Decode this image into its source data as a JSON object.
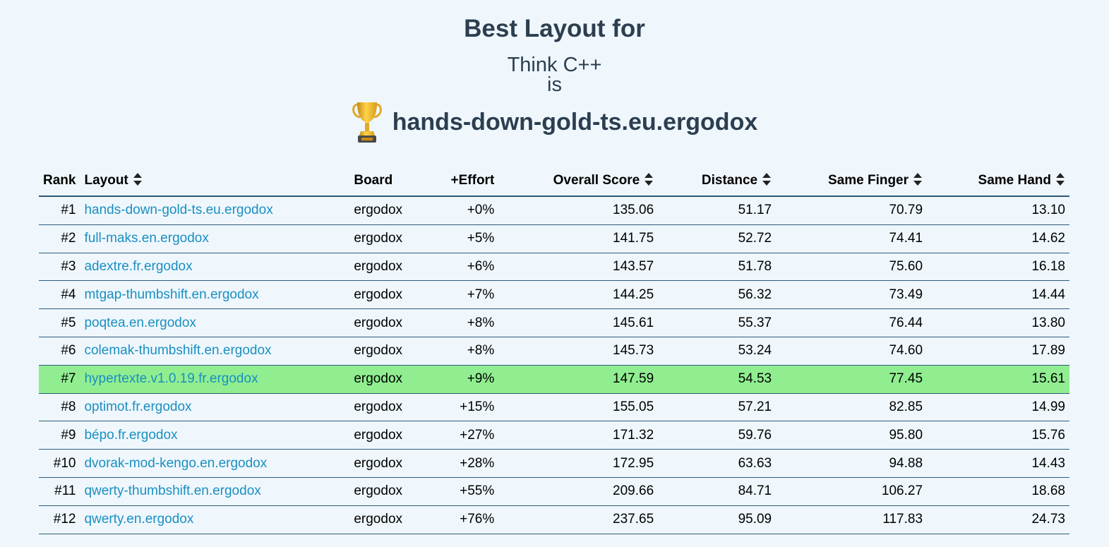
{
  "header": {
    "title": "Best Layout for",
    "subject": "Think C++",
    "is_word": "is",
    "trophy_icon": "trophy-icon",
    "winner": "hands-down-gold-ts.eu.ergodox"
  },
  "table": {
    "columns": {
      "rank": "Rank",
      "layout": "Layout",
      "board": "Board",
      "effort": "+Effort",
      "overall": "Overall Score",
      "distance": "Distance",
      "same_finger": "Same Finger",
      "same_hand": "Same Hand"
    },
    "sortable_icon": "sort-updown-icon",
    "highlight_color": "#90ee90",
    "link_color": "#1a8fc0",
    "rows": [
      {
        "rank": "#1",
        "layout": "hands-down-gold-ts.eu.ergodox",
        "board": "ergodox",
        "effort": "+0%",
        "overall": "135.06",
        "distance": "51.17",
        "same_finger": "70.79",
        "same_hand": "13.10"
      },
      {
        "rank": "#2",
        "layout": "full-maks.en.ergodox",
        "board": "ergodox",
        "effort": "+5%",
        "overall": "141.75",
        "distance": "52.72",
        "same_finger": "74.41",
        "same_hand": "14.62"
      },
      {
        "rank": "#3",
        "layout": "adextre.fr.ergodox",
        "board": "ergodox",
        "effort": "+6%",
        "overall": "143.57",
        "distance": "51.78",
        "same_finger": "75.60",
        "same_hand": "16.18"
      },
      {
        "rank": "#4",
        "layout": "mtgap-thumbshift.en.ergodox",
        "board": "ergodox",
        "effort": "+7%",
        "overall": "144.25",
        "distance": "56.32",
        "same_finger": "73.49",
        "same_hand": "14.44"
      },
      {
        "rank": "#5",
        "layout": "poqtea.en.ergodox",
        "board": "ergodox",
        "effort": "+8%",
        "overall": "145.61",
        "distance": "55.37",
        "same_finger": "76.44",
        "same_hand": "13.80"
      },
      {
        "rank": "#6",
        "layout": "colemak-thumbshift.en.ergodox",
        "board": "ergodox",
        "effort": "+8%",
        "overall": "145.73",
        "distance": "53.24",
        "same_finger": "74.60",
        "same_hand": "17.89"
      },
      {
        "rank": "#7",
        "layout": "hypertexte.v1.0.19.fr.ergodox",
        "board": "ergodox",
        "effort": "+9%",
        "overall": "147.59",
        "distance": "54.53",
        "same_finger": "77.45",
        "same_hand": "15.61",
        "highlight": true
      },
      {
        "rank": "#8",
        "layout": "optimot.fr.ergodox",
        "board": "ergodox",
        "effort": "+15%",
        "overall": "155.05",
        "distance": "57.21",
        "same_finger": "82.85",
        "same_hand": "14.99"
      },
      {
        "rank": "#9",
        "layout": "bépo.fr.ergodox",
        "board": "ergodox",
        "effort": "+27%",
        "overall": "171.32",
        "distance": "59.76",
        "same_finger": "95.80",
        "same_hand": "15.76"
      },
      {
        "rank": "#10",
        "layout": "dvorak-mod-kengo.en.ergodox",
        "board": "ergodox",
        "effort": "+28%",
        "overall": "172.95",
        "distance": "63.63",
        "same_finger": "94.88",
        "same_hand": "14.43"
      },
      {
        "rank": "#11",
        "layout": "qwerty-thumbshift.en.ergodox",
        "board": "ergodox",
        "effort": "+55%",
        "overall": "209.66",
        "distance": "84.71",
        "same_finger": "106.27",
        "same_hand": "18.68"
      },
      {
        "rank": "#12",
        "layout": "qwerty.en.ergodox",
        "board": "ergodox",
        "effort": "+76%",
        "overall": "237.65",
        "distance": "95.09",
        "same_finger": "117.83",
        "same_hand": "24.73"
      }
    ]
  }
}
